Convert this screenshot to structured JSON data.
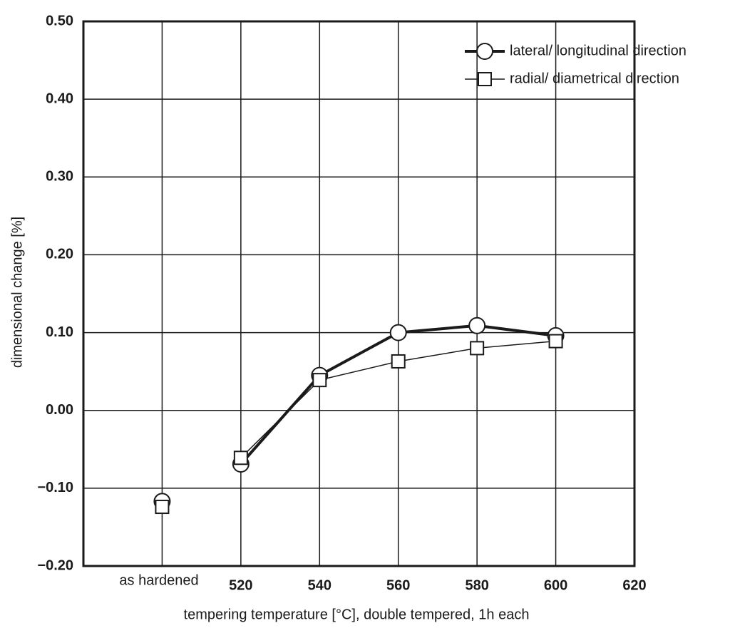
{
  "chart_data": {
    "type": "line",
    "x_label": "tempering temperature [°C], double tempered, 1h each",
    "y_label": "dimensional change [%]",
    "categories": [
      null,
      "as hardened",
      "520",
      "540",
      "560",
      "580",
      "600",
      "620"
    ],
    "series": [
      {
        "name": "lateral/ longitudinal direction",
        "color": "#1a1a1a",
        "marker": "circle",
        "values": [
          null,
          -0.117,
          -0.069,
          0.045,
          0.1,
          0.109,
          0.096,
          null
        ]
      },
      {
        "name": "radial/ diametrical direction",
        "color": "#1a1a1a",
        "marker": "square",
        "values": [
          null,
          -0.124,
          -0.061,
          0.039,
          0.063,
          0.08,
          0.089,
          null
        ]
      }
    ],
    "ylim": [
      -0.2,
      0.5
    ],
    "yticks": [
      {
        "value": -0.2,
        "label": "−0.20"
      },
      {
        "value": -0.1,
        "label": "−0.10"
      },
      {
        "value": 0,
        "label": "0.00"
      },
      {
        "value": 0.1,
        "label": "0.10"
      },
      {
        "value": 0.2,
        "label": "0.20"
      },
      {
        "value": 0.3,
        "label": "0.30"
      },
      {
        "value": 0.4,
        "label": "0.40"
      },
      {
        "value": 0.5,
        "label": "0.50"
      }
    ],
    "grid": true,
    "legend": "top-right"
  }
}
